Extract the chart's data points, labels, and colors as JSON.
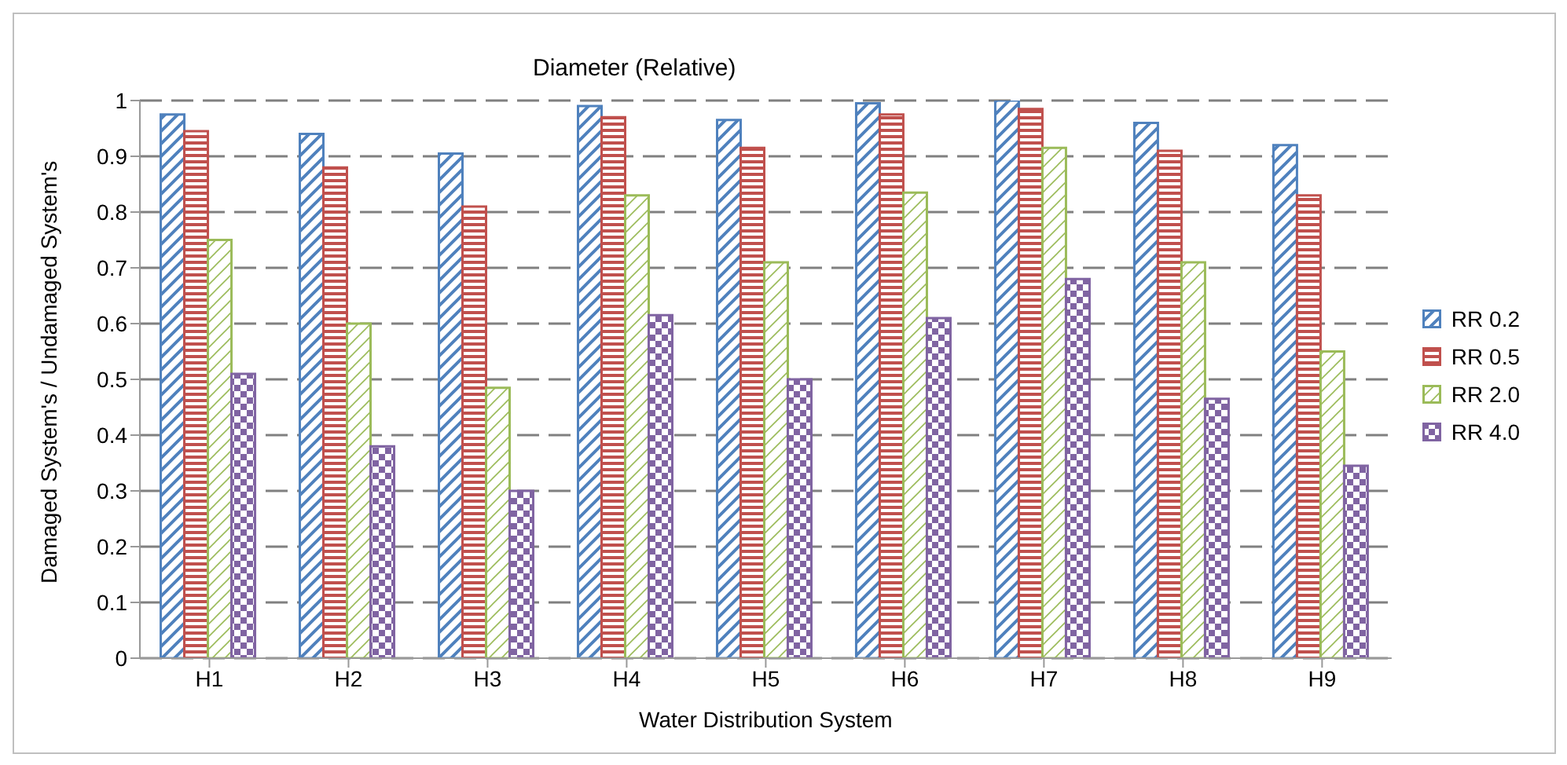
{
  "chart_data": {
    "type": "bar",
    "title": "Diameter (Relative)",
    "xlabel": "Water Distribution System",
    "ylabel": "Damaged System's / Undamaged System's",
    "categories": [
      "H1",
      "H2",
      "H3",
      "H4",
      "H5",
      "H6",
      "H7",
      "H8",
      "H9"
    ],
    "series": [
      {
        "name": "RR 0.2",
        "color": "#4f81bd",
        "values": [
          0.975,
          0.94,
          0.905,
          0.99,
          0.965,
          0.995,
          1.0,
          0.96,
          0.92
        ]
      },
      {
        "name": "RR 0.5",
        "color": "#c0504d",
        "values": [
          0.945,
          0.88,
          0.81,
          0.97,
          0.915,
          0.975,
          0.985,
          0.91,
          0.83
        ]
      },
      {
        "name": "RR 2.0",
        "color": "#9bbb59",
        "values": [
          0.75,
          0.6,
          0.485,
          0.83,
          0.71,
          0.835,
          0.915,
          0.71,
          0.55
        ]
      },
      {
        "name": "RR 4.0",
        "color": "#8064a2",
        "values": [
          0.51,
          0.38,
          0.3,
          0.615,
          0.5,
          0.61,
          0.68,
          0.465,
          0.345
        ]
      }
    ],
    "ylim": [
      0,
      1
    ],
    "yticks": [
      0,
      0.1,
      0.2,
      0.3,
      0.4,
      0.5,
      0.6,
      0.7,
      0.8,
      0.9,
      1
    ],
    "grid": "y",
    "legend": "right"
  }
}
